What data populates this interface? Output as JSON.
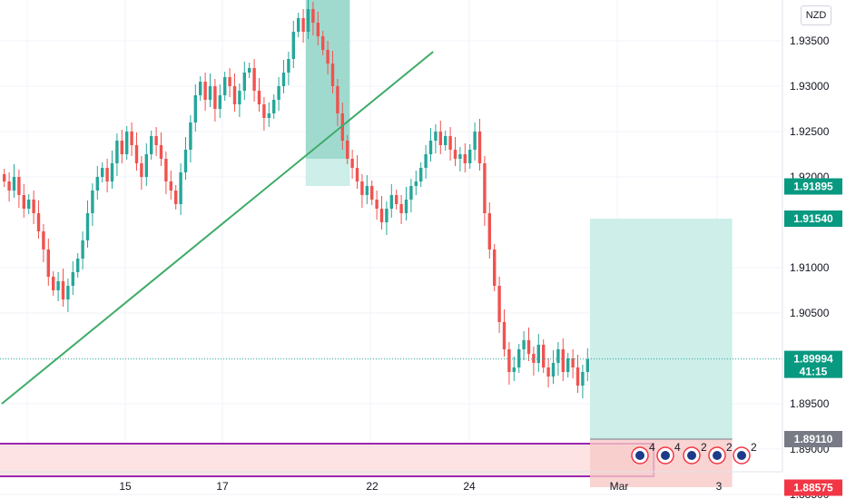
{
  "currency": "NZD",
  "colors": {
    "up": "#26a69a",
    "down": "#ef5350",
    "trendline": "#3dab67",
    "rect_border": "#9c27b0",
    "rect_fill": "#fde3e3",
    "target_fill": "#cdeee9",
    "stop_fill": "#f8c9c7",
    "grid": "#f0f3fa",
    "badge_green": "#089981",
    "badge_red": "#f23645",
    "badge_grey": "#787b86",
    "badge_dark": "#131722"
  },
  "chart_data": {
    "type": "candlestick",
    "ylim": [
      1.883,
      1.9395
    ],
    "y_ticks": [
      "1.93500",
      "1.93000",
      "1.92500",
      "1.92000",
      "1.91000",
      "1.90500",
      "1.89500",
      "1.89000",
      "1.88500"
    ],
    "x_ticks": [
      "15",
      "17",
      "22",
      "24",
      "Mar",
      "3"
    ],
    "price_tags": [
      {
        "value": "1.91895",
        "style": "green"
      },
      {
        "value": "1.91540",
        "style": "green"
      },
      {
        "value": "1.89994",
        "sub": "41:15",
        "style": "green"
      },
      {
        "value": "1.89110",
        "style": "grey"
      },
      {
        "value": "1.88575",
        "style": "red"
      }
    ],
    "current_price": 1.89994,
    "trendline": {
      "from": [
        0,
        1.895
      ],
      "to": [
        88,
        1.9338
      ]
    },
    "zone_rect": {
      "from_bar": 0,
      "to_bar": 133,
      "top": 1.8906,
      "bottom": 1.887
    },
    "position": {
      "from_bar": 120,
      "to_bar": 149,
      "entry": 1.8911,
      "target": 1.9154,
      "stop": 1.8858
    },
    "shaded_box": {
      "from_bar": 62,
      "to_bar": 71,
      "top": 1.9395,
      "mid": 1.922,
      "bottom": 1.919
    },
    "event_counts": [
      "4",
      "4",
      "2",
      "2",
      "2"
    ]
  }
}
